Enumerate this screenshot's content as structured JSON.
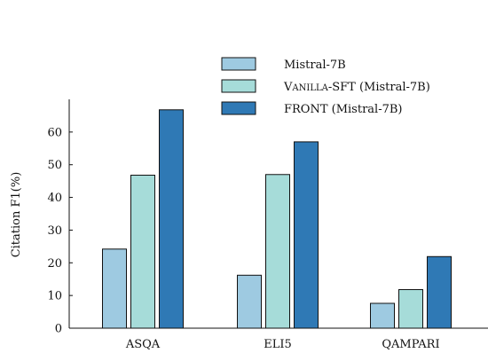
{
  "chart_data": {
    "type": "bar",
    "categories": [
      "ASQA",
      "ELI5",
      "QAMPARI"
    ],
    "series": [
      {
        "name": "Mistral-7B",
        "values": [
          24.2,
          16.2,
          7.6
        ],
        "color": "#9ecae1"
      },
      {
        "name": "VANILLA-SFT (Mistral-7B)",
        "values": [
          46.8,
          47.0,
          11.8
        ],
        "color": "#a6dcd9"
      },
      {
        "name": "FRONT (Mistral-7B)",
        "values": [
          66.8,
          57.0,
          21.9
        ],
        "color": "#2f79b5"
      }
    ],
    "xlabel": "",
    "ylabel": "Citation F1(%)",
    "ylim": [
      0,
      70
    ],
    "yticks": [
      0,
      10,
      20,
      30,
      40,
      50,
      60
    ],
    "grid": false,
    "legend_position": "top"
  }
}
